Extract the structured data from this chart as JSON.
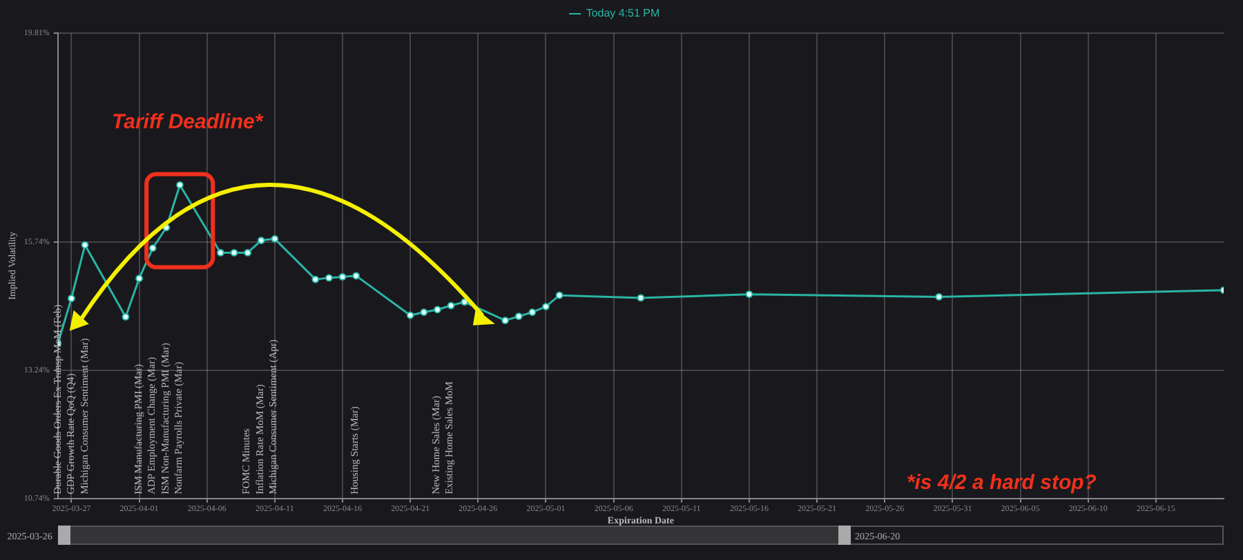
{
  "chart_data": {
    "type": "line",
    "xlabel": "Expiration Date",
    "ylabel": "Implied Volatility",
    "xlim": [
      "2025-03-26",
      "2025-06-20"
    ],
    "xticks": [
      "2025-03-27",
      "2025-04-01",
      "2025-04-06",
      "2025-04-11",
      "2025-04-16",
      "2025-04-21",
      "2025-04-26",
      "2025-05-01",
      "2025-05-06",
      "2025-05-11",
      "2025-05-16",
      "2025-05-21",
      "2025-05-26",
      "2025-05-31",
      "2025-06-05",
      "2025-06-10",
      "2025-06-15"
    ],
    "ylim": [
      10.74,
      19.81
    ],
    "yticks": [
      {
        "value": 10.74,
        "label": "10.74%"
      },
      {
        "value": 13.24,
        "label": "13.24%"
      },
      {
        "value": 15.74,
        "label": "15.74%"
      },
      {
        "value": 19.81,
        "label": "19.81%"
      }
    ],
    "x": [
      "2025-03-26",
      "2025-03-27",
      "2025-03-28",
      "2025-03-31",
      "2025-04-01",
      "2025-04-02",
      "2025-04-03",
      "2025-04-04",
      "2025-04-07",
      "2025-04-08",
      "2025-04-09",
      "2025-04-10",
      "2025-04-11",
      "2025-04-14",
      "2025-04-15",
      "2025-04-16",
      "2025-04-17",
      "2025-04-21",
      "2025-04-22",
      "2025-04-23",
      "2025-04-24",
      "2025-04-25",
      "2025-04-28",
      "2025-04-29",
      "2025-04-30",
      "2025-05-01",
      "2025-05-02",
      "2025-05-08",
      "2025-05-16",
      "2025-05-30",
      "2025-06-20"
    ],
    "series": [
      {
        "name": "Today 4:51 PM",
        "color": "#2ab5a5",
        "values": [
          13.76,
          14.64,
          15.68,
          14.28,
          15.03,
          15.62,
          16.02,
          16.85,
          15.53,
          15.53,
          15.53,
          15.77,
          15.8,
          15.01,
          15.04,
          15.06,
          15.08,
          14.31,
          14.37,
          14.42,
          14.5,
          14.57,
          14.21,
          14.29,
          14.37,
          14.48,
          14.7,
          14.65,
          14.72,
          14.67,
          14.8
        ]
      }
    ],
    "annotations": [
      "Tariff Deadline*",
      "*is 4/2 a hard stop?",
      "2025-03-26",
      "2025-06-20",
      "Durable Goods Orders Ex Transp MoM (Feb)",
      "GDP Growth Rate QoQ (Q4)",
      "Michigan Consumer Sentiment (Mar)",
      "ISM Manufacturing PMI (Mar)",
      "ADP Employment Change (Mar)",
      "ISM Non-Manufacturing PMI (Mar)",
      "Nonfarm Payrolls Private (Mar)",
      "FOMC Minutes",
      "Inflation Rate MoM (Mar)",
      "Michigan Consumer Sentiment (Apr)",
      "Housing Starts (Mar)",
      "New Home Sales (Mar)",
      "Existing Home Sales MoM"
    ],
    "grid": true,
    "legend": "top",
    "marker": "circle",
    "line_style": "solid"
  }
}
